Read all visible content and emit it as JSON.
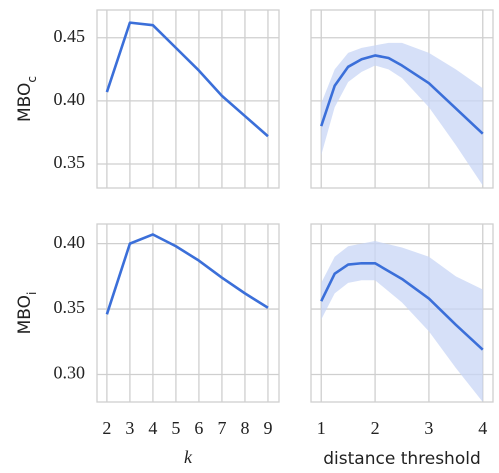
{
  "chart_data": [
    {
      "type": "line",
      "ylabel": "MBO",
      "ylabel_sub": "c",
      "color": "#3b6fd9",
      "x": [
        2,
        3,
        4,
        5,
        6,
        7,
        8,
        9
      ],
      "values": [
        0.407,
        0.462,
        0.46,
        0.442,
        0.424,
        0.404,
        0.388,
        0.372
      ],
      "ylim": [
        0.331,
        0.472
      ],
      "yticks": [
        0.35,
        {
          "value": 0.4,
          "label": "0.40"
        },
        0.45
      ],
      "grid": true
    },
    {
      "type": "band-line",
      "color": "#3b6fd9",
      "band_color": "#c8d5f5",
      "x": [
        1,
        1.25,
        1.5,
        1.75,
        2,
        2.25,
        2.5,
        3,
        3.5,
        4
      ],
      "values": [
        0.38,
        0.412,
        0.427,
        0.433,
        0.436,
        0.434,
        0.428,
        0.414,
        0.394,
        0.374
      ],
      "band_lower": [
        0.357,
        0.395,
        0.415,
        0.423,
        0.428,
        0.425,
        0.418,
        0.395,
        0.365,
        0.333
      ],
      "band_upper": [
        0.398,
        0.425,
        0.438,
        0.442,
        0.444,
        0.446,
        0.446,
        0.438,
        0.425,
        0.41
      ],
      "grid": true
    },
    {
      "type": "line",
      "ylabel": "MBO",
      "ylabel_sub": "i",
      "xlabel": "k",
      "color": "#3b6fd9",
      "x": [
        2,
        3,
        4,
        5,
        6,
        7,
        8,
        9
      ],
      "values": [
        0.346,
        0.4,
        0.407,
        0.398,
        0.387,
        0.374,
        0.362,
        0.351
      ],
      "xlim": [
        1.57,
        9.48
      ],
      "xticks": [
        2,
        3,
        4,
        5,
        6,
        7,
        8,
        9
      ],
      "ylim": [
        0.279,
        0.415
      ],
      "yticks": [
        {
          "value": 0.3,
          "label": "0.30"
        },
        0.35,
        {
          "value": 0.4,
          "label": "0.40"
        }
      ],
      "grid": true
    },
    {
      "type": "band-line",
      "xlabel": "distance threshold",
      "color": "#3b6fd9",
      "band_color": "#c8d5f5",
      "x": [
        1,
        1.25,
        1.5,
        1.75,
        2,
        2.5,
        3,
        3.5,
        4
      ],
      "values": [
        0.356,
        0.377,
        0.384,
        0.385,
        0.385,
        0.373,
        0.358,
        0.338,
        0.319
      ],
      "band_lower": [
        0.342,
        0.362,
        0.37,
        0.372,
        0.372,
        0.355,
        0.333,
        0.305,
        0.279
      ],
      "band_upper": [
        0.37,
        0.39,
        0.398,
        0.4,
        0.402,
        0.397,
        0.39,
        0.375,
        0.365
      ],
      "xlim": [
        0.81,
        4.19
      ],
      "xticks": [
        1,
        2,
        3,
        4
      ],
      "grid": true
    }
  ]
}
